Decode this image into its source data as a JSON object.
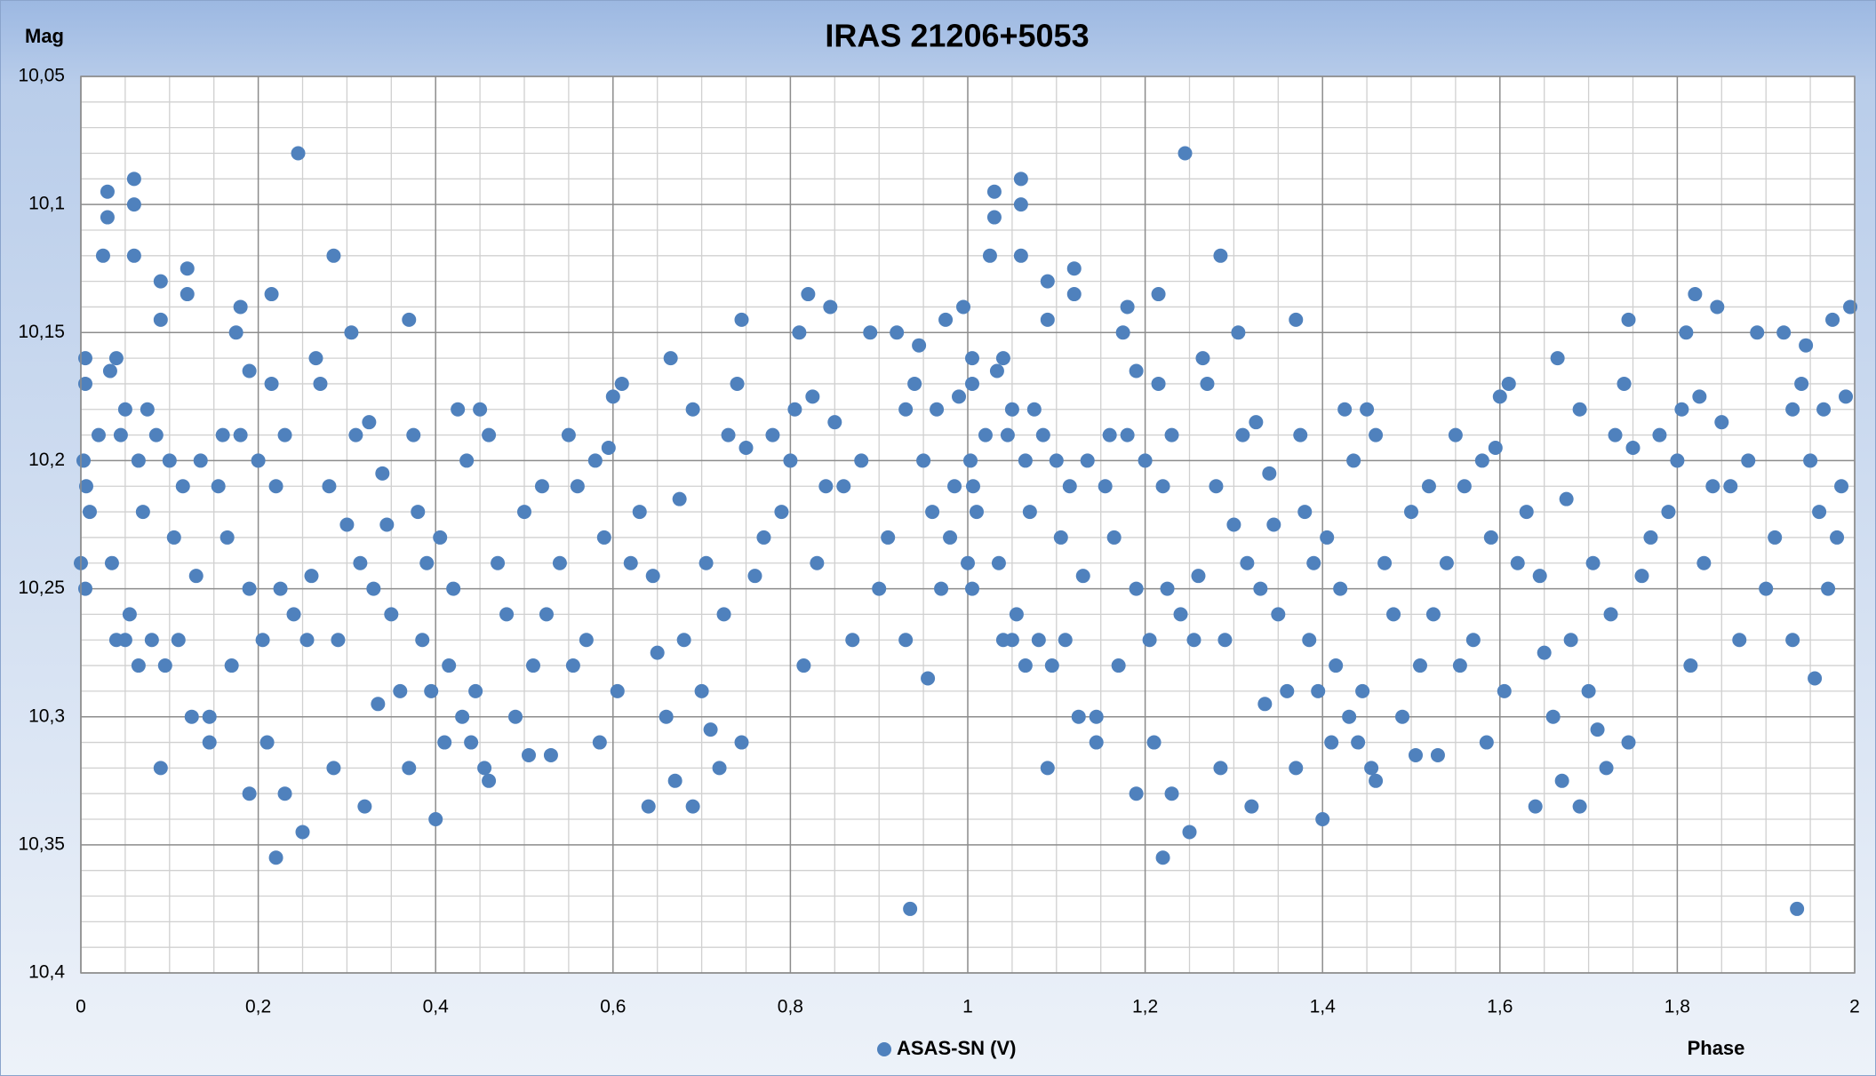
{
  "chart_data": {
    "type": "scatter",
    "title": "IRAS 21206+5053",
    "y_label": "Mag",
    "x_label": "Phase",
    "xlim": [
      0,
      2
    ],
    "ylim": [
      10.05,
      10.4
    ],
    "y_inverted": true,
    "grid": true,
    "minor_grid": true,
    "legend": "bottom",
    "xticks": [
      0,
      {
        "value": 0.2,
        "label": "0,2"
      },
      {
        "value": 0.4,
        "label": "0,4"
      },
      {
        "value": 0.6,
        "label": "0,6"
      },
      {
        "value": 0.8,
        "label": "0,8"
      },
      1,
      {
        "value": 1.2,
        "label": "1,2"
      },
      {
        "value": 1.4,
        "label": "1,4"
      },
      {
        "value": 1.6,
        "label": "1,6"
      },
      {
        "value": 1.8,
        "label": "1,8"
      },
      2
    ],
    "yticks": [
      {
        "value": 10.05,
        "label": "10,05"
      },
      {
        "value": 10.1,
        "label": "10,1"
      },
      {
        "value": 10.15,
        "label": "10,15"
      },
      {
        "value": 10.2,
        "label": "10,2"
      },
      {
        "value": 10.25,
        "label": "10,25"
      },
      {
        "value": 10.3,
        "label": "10,3"
      },
      {
        "value": 10.35,
        "label": "10,35"
      },
      {
        "value": 10.4,
        "label": "10,4"
      }
    ],
    "series": [
      {
        "name": "ASAS-SN (V)",
        "color": "#4f81bd",
        "x": [
          0,
          0.005,
          0.005,
          0.003,
          0.006,
          0.005,
          0.01,
          0.02,
          0.025,
          0.03,
          0.03,
          0.033,
          0.035,
          0.04,
          0.04,
          0.045,
          0.05,
          0.05,
          0.055,
          0.06,
          0.06,
          0.06,
          0.065,
          0.065,
          0.07,
          0.075,
          0.08,
          0.085,
          0.09,
          0.09,
          0.09,
          0.095,
          0.1,
          0.105,
          0.11,
          0.115,
          0.12,
          0.12,
          0.125,
          0.13,
          0.135,
          0.145,
          0.145,
          0.155,
          0.16,
          0.165,
          0.17,
          0.175,
          0.18,
          0.18,
          0.19,
          0.19,
          0.19,
          0.2,
          0.205,
          0.21,
          0.215,
          0.215,
          0.22,
          0.22,
          0.225,
          0.23,
          0.23,
          0.24,
          0.245,
          0.25,
          0.255,
          0.26,
          0.265,
          0.27,
          0.28,
          0.285,
          0.285,
          0.29,
          0.3,
          0.305,
          0.31,
          0.315,
          0.32,
          0.325,
          0.33,
          0.335,
          0.34,
          0.345,
          0.35,
          0.36,
          0.37,
          0.37,
          0.375,
          0.38,
          0.385,
          0.39,
          0.395,
          0.4,
          0.405,
          0.41,
          0.415,
          0.42,
          0.425,
          0.43,
          0.435,
          0.44,
          0.445,
          0.45,
          0.455,
          0.46,
          0.46,
          0.47,
          0.48,
          0.49,
          0.5,
          0.505,
          0.51,
          0.52,
          0.525,
          0.53,
          0.54,
          0.55,
          0.555,
          0.56,
          0.57,
          0.58,
          0.585,
          0.59,
          0.595,
          0.6,
          0.605,
          0.61,
          0.62,
          0.63,
          0.64,
          0.645,
          0.65,
          0.66,
          0.665,
          0.67,
          0.675,
          0.68,
          0.69,
          0.69,
          0.7,
          0.705,
          0.71,
          0.72,
          0.725,
          0.73,
          0.74,
          0.745,
          0.745,
          0.75,
          0.76,
          0.77,
          0.78,
          0.79,
          0.8,
          0.805,
          0.81,
          0.815,
          0.82,
          0.825,
          0.83,
          0.84,
          0.845,
          0.85,
          0.86,
          0.87,
          0.88,
          0.89,
          0.9,
          0.91,
          0.92,
          0.93,
          0.93,
          0.935,
          0.94,
          0.945,
          0.95,
          0.955,
          0.96,
          0.965,
          0.97,
          0.975,
          0.98,
          0.985,
          0.99,
          0.995,
          1,
          1.005,
          1.005,
          1.003,
          1.006,
          1.005,
          1.01,
          1.02,
          1.025,
          1.03,
          1.03,
          1.033,
          1.035,
          1.04,
          1.04,
          1.045,
          1.05,
          1.05,
          1.055,
          1.06,
          1.06,
          1.06,
          1.065,
          1.065,
          1.07,
          1.075,
          1.08,
          1.085,
          1.09,
          1.09,
          1.09,
          1.095,
          1.1,
          1.105,
          1.11,
          1.115,
          1.12,
          1.12,
          1.125,
          1.13,
          1.135,
          1.145,
          1.145,
          1.155,
          1.16,
          1.165,
          1.17,
          1.175,
          1.18,
          1.18,
          1.19,
          1.19,
          1.19,
          1.2,
          1.205,
          1.21,
          1.215,
          1.215,
          1.22,
          1.22,
          1.225,
          1.23,
          1.23,
          1.24,
          1.245,
          1.25,
          1.255,
          1.26,
          1.265,
          1.27,
          1.28,
          1.285,
          1.285,
          1.29,
          1.3,
          1.305,
          1.31,
          1.315,
          1.32,
          1.325,
          1.33,
          1.335,
          1.34,
          1.345,
          1.35,
          1.36,
          1.37,
          1.37,
          1.375,
          1.38,
          1.385,
          1.39,
          1.395,
          1.4,
          1.405,
          1.41,
          1.415,
          1.42,
          1.425,
          1.43,
          1.435,
          1.44,
          1.445,
          1.45,
          1.455,
          1.46,
          1.46,
          1.47,
          1.48,
          1.49,
          1.5,
          1.505,
          1.51,
          1.52,
          1.525,
          1.53,
          1.54,
          1.55,
          1.555,
          1.56,
          1.57,
          1.58,
          1.585,
          1.59,
          1.595,
          1.6,
          1.605,
          1.61,
          1.62,
          1.63,
          1.64,
          1.645,
          1.65,
          1.66,
          1.665,
          1.67,
          1.675,
          1.68,
          1.69,
          1.69,
          1.7,
          1.705,
          1.71,
          1.72,
          1.725,
          1.73,
          1.74,
          1.745,
          1.745,
          1.75,
          1.76,
          1.77,
          1.78,
          1.79,
          1.8,
          1.805,
          1.81,
          1.815,
          1.82,
          1.825,
          1.83,
          1.84,
          1.845,
          1.85,
          1.86,
          1.87,
          1.88,
          1.89,
          1.9,
          1.91,
          1.92,
          1.93,
          1.93,
          1.935,
          1.94,
          1.945,
          1.95,
          1.955,
          1.96,
          1.965,
          1.97,
          1.975,
          1.98,
          1.985,
          1.99,
          1.995
        ],
        "values": [
          10.24,
          10.16,
          10.17,
          10.2,
          10.21,
          10.25,
          10.22,
          10.19,
          10.12,
          10.095,
          10.105,
          10.165,
          10.24,
          10.27,
          10.16,
          10.19,
          10.18,
          10.27,
          10.26,
          10.09,
          10.1,
          10.12,
          10.2,
          10.28,
          10.22,
          10.18,
          10.27,
          10.19,
          10.13,
          10.145,
          10.32,
          10.28,
          10.2,
          10.23,
          10.27,
          10.21,
          10.125,
          10.135,
          10.3,
          10.245,
          10.2,
          10.3,
          10.31,
          10.21,
          10.19,
          10.23,
          10.28,
          10.15,
          10.14,
          10.19,
          10.165,
          10.25,
          10.33,
          10.2,
          10.27,
          10.31,
          10.135,
          10.17,
          10.21,
          10.355,
          10.25,
          10.19,
          10.33,
          10.26,
          10.08,
          10.345,
          10.27,
          10.245,
          10.16,
          10.17,
          10.21,
          10.12,
          10.32,
          10.27,
          10.225,
          10.15,
          10.19,
          10.24,
          10.335,
          10.185,
          10.25,
          10.295,
          10.205,
          10.225,
          10.26,
          10.29,
          10.145,
          10.32,
          10.19,
          10.22,
          10.27,
          10.24,
          10.29,
          10.34,
          10.23,
          10.31,
          10.28,
          10.25,
          10.18,
          10.3,
          10.2,
          10.31,
          10.29,
          10.18,
          10.32,
          10.19,
          10.325,
          10.24,
          10.26,
          10.3,
          10.22,
          10.315,
          10.28,
          10.21,
          10.26,
          10.315,
          10.24,
          10.19,
          10.28,
          10.21,
          10.27,
          10.2,
          10.31,
          10.23,
          10.195,
          10.175,
          10.29,
          10.17,
          10.24,
          10.22,
          10.335,
          10.245,
          10.275,
          10.3,
          10.16,
          10.325,
          10.215,
          10.27,
          10.18,
          10.335,
          10.29,
          10.24,
          10.305,
          10.32,
          10.26,
          10.19,
          10.17,
          10.145,
          10.31,
          10.195,
          10.245,
          10.23,
          10.19,
          10.22,
          10.2,
          10.18,
          10.15,
          10.28,
          10.135,
          10.175,
          10.24,
          10.21,
          10.14,
          10.185,
          10.21,
          10.27,
          10.2,
          10.15,
          10.25,
          10.23,
          10.15,
          10.18,
          10.27,
          10.375,
          10.17,
          10.155,
          10.2,
          10.285,
          10.22,
          10.18,
          10.25,
          10.145,
          10.23,
          10.21,
          10.175,
          10.14,
          10.24,
          10.16,
          10.17,
          10.2,
          10.21,
          10.25,
          10.22,
          10.19,
          10.12,
          10.095,
          10.105,
          10.165,
          10.24,
          10.27,
          10.16,
          10.19,
          10.18,
          10.27,
          10.26,
          10.09,
          10.1,
          10.12,
          10.2,
          10.28,
          10.22,
          10.18,
          10.27,
          10.19,
          10.13,
          10.145,
          10.32,
          10.28,
          10.2,
          10.23,
          10.27,
          10.21,
          10.125,
          10.135,
          10.3,
          10.245,
          10.2,
          10.3,
          10.31,
          10.21,
          10.19,
          10.23,
          10.28,
          10.15,
          10.14,
          10.19,
          10.165,
          10.25,
          10.33,
          10.2,
          10.27,
          10.31,
          10.135,
          10.17,
          10.21,
          10.355,
          10.25,
          10.19,
          10.33,
          10.26,
          10.08,
          10.345,
          10.27,
          10.245,
          10.16,
          10.17,
          10.21,
          10.12,
          10.32,
          10.27,
          10.225,
          10.15,
          10.19,
          10.24,
          10.335,
          10.185,
          10.25,
          10.295,
          10.205,
          10.225,
          10.26,
          10.29,
          10.145,
          10.32,
          10.19,
          10.22,
          10.27,
          10.24,
          10.29,
          10.34,
          10.23,
          10.31,
          10.28,
          10.25,
          10.18,
          10.3,
          10.2,
          10.31,
          10.29,
          10.18,
          10.32,
          10.19,
          10.325,
          10.24,
          10.26,
          10.3,
          10.22,
          10.315,
          10.28,
          10.21,
          10.26,
          10.315,
          10.24,
          10.19,
          10.28,
          10.21,
          10.27,
          10.2,
          10.31,
          10.23,
          10.195,
          10.175,
          10.29,
          10.17,
          10.24,
          10.22,
          10.335,
          10.245,
          10.275,
          10.3,
          10.16,
          10.325,
          10.215,
          10.27,
          10.18,
          10.335,
          10.29,
          10.24,
          10.305,
          10.32,
          10.26,
          10.19,
          10.17,
          10.145,
          10.31,
          10.195,
          10.245,
          10.23,
          10.19,
          10.22,
          10.2,
          10.18,
          10.15,
          10.28,
          10.135,
          10.175,
          10.24,
          10.21,
          10.14,
          10.185,
          10.21,
          10.27,
          10.2,
          10.15,
          10.25,
          10.23,
          10.15,
          10.18,
          10.27,
          10.375,
          10.17,
          10.155,
          10.2,
          10.285,
          10.22,
          10.18,
          10.25,
          10.145,
          10.23,
          10.21,
          10.175,
          10.14
        ]
      }
    ]
  }
}
